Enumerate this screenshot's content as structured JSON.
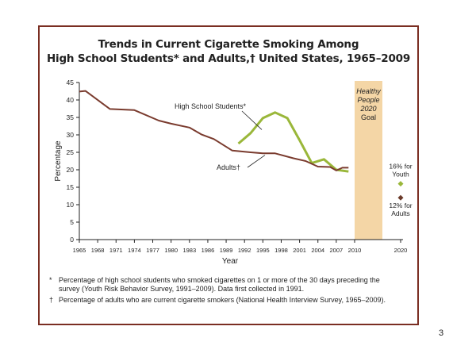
{
  "page_number": "3",
  "colors": {
    "frame": "#7a2e22",
    "youth_line": "#9ab73a",
    "adult_line": "#7a3b2e",
    "goal_band": "#f4d6a6",
    "youth_goal_marker": "#9ab73a",
    "adult_goal_marker": "#6b3a2a"
  },
  "chart_data": {
    "type": "line",
    "title": "Trends in Current Cigarette Smoking Among",
    "subtitle": "High School Students* and Adults,† United States, 1965–2009",
    "ylabel": "Percentage",
    "xlabel": "Year",
    "ylim": [
      0,
      45
    ],
    "yticks": [
      0,
      5,
      10,
      15,
      20,
      25,
      30,
      35,
      40,
      45
    ],
    "xlim": [
      1965,
      2020
    ],
    "xticks": [
      "1965",
      "1968",
      "1971",
      "1974",
      "1977",
      "1980",
      "1983",
      "1986",
      "1989",
      "1992",
      "1995",
      "1998",
      "2001",
      "2004",
      "2007",
      "2010",
      "2020"
    ],
    "grid": false,
    "series": [
      {
        "name": "High School Students*",
        "color": "#9ab73a",
        "x": [
          1991,
          1993,
          1995,
          1997,
          1999,
          2001,
          2003,
          2005,
          2007,
          2009
        ],
        "values": [
          27.5,
          30.5,
          34.8,
          36.4,
          34.8,
          28.5,
          21.9,
          23.0,
          20.0,
          19.5
        ]
      },
      {
        "name": "Adults†",
        "color": "#7a3b2e",
        "x": [
          1965,
          1966,
          1970,
          1974,
          1978,
          1980,
          1983,
          1985,
          1987,
          1990,
          1993,
          1995,
          1997,
          2000,
          2002,
          2004,
          2006,
          2007,
          2008,
          2009
        ],
        "values": [
          42.4,
          42.6,
          37.4,
          37.1,
          34.1,
          33.2,
          32.1,
          30.1,
          28.8,
          25.5,
          25.0,
          24.7,
          24.7,
          23.3,
          22.5,
          20.9,
          20.8,
          19.8,
          20.6,
          20.6
        ]
      }
    ],
    "goal_band": {
      "label_lines": [
        "Healthy",
        "People",
        "2020",
        "Goal"
      ],
      "x_range": [
        2010,
        2020
      ]
    },
    "goals": [
      {
        "series": "High School Students*",
        "x": 2020,
        "value": 16,
        "label_lines": [
          "16% for",
          "Youth"
        ]
      },
      {
        "series": "Adults†",
        "x": 2020,
        "value": 12,
        "label_lines": [
          "12% for",
          "Adults"
        ]
      }
    ],
    "annotations": {
      "youth_label": "High School Students*",
      "adult_label": "Adults†"
    }
  },
  "footnotes": {
    "note1_mark": "*",
    "note1": "Percentage of high school students who smoked cigarettes on 1 or more of the 30 days preceding the survey (Youth Risk Behavior Survey, 1991–2009). Data first collected in 1991.",
    "note2_mark": "†",
    "note2": "Percentage of adults who are current cigarette smokers (National Health Interview Survey, 1965–2009)."
  }
}
